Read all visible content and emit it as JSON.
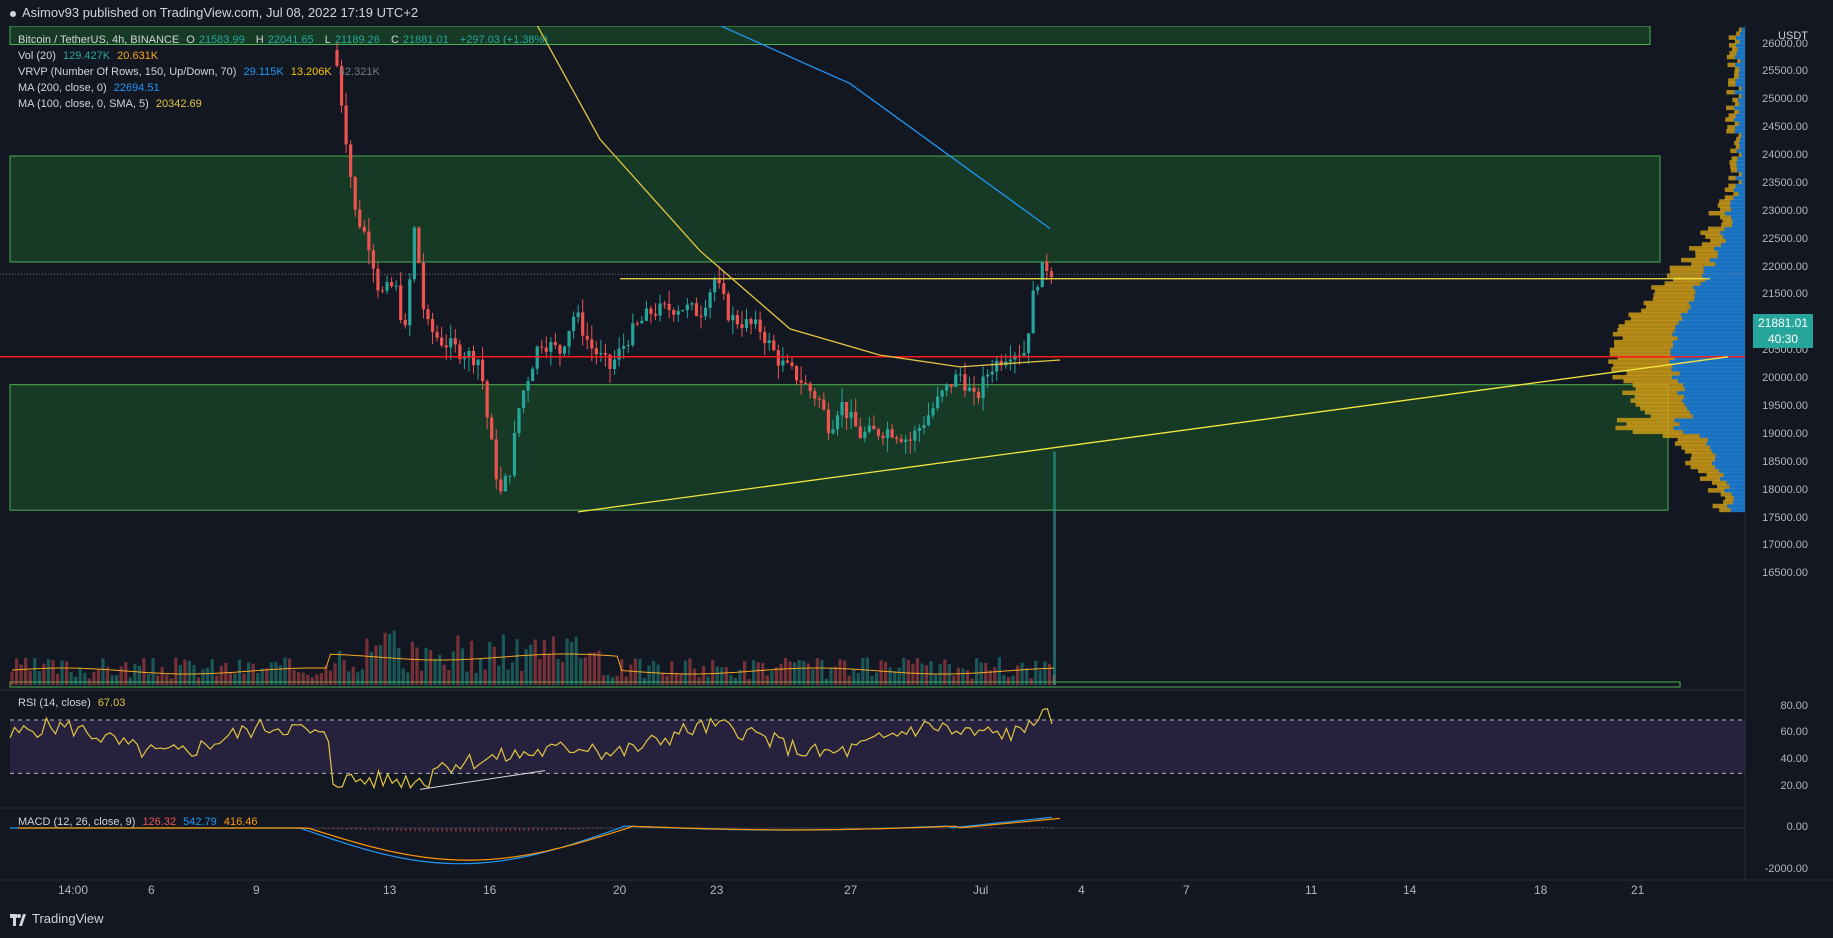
{
  "header": {
    "publisher_text": "Asimov93 published on TradingView.com, Jul 08, 2022 17:19 UTC+2"
  },
  "symbol_line": {
    "title": "Bitcoin / TetherUS, 4h, BINANCE",
    "o_label": "O",
    "o_value": "21583.99",
    "h_label": "H",
    "h_value": "22041.65",
    "l_label": "L",
    "l_value": "21189.26",
    "c_label": "C",
    "c_value": "21881.01",
    "change": "+297.03 (+1.38%)"
  },
  "indicators": {
    "vol_label": "Vol (20)",
    "vol_v1": "129.427K",
    "vol_v2": "20.631K",
    "vrvp_label": "VRVP (Number Of Rows, 150, Up/Down, 70)",
    "vrvp_v1": "29.115K",
    "vrvp_v2": "13.206K",
    "vrvp_v3": "42.321K",
    "ma200_label": "MA (200, close, 0)",
    "ma200_value": "22694.51",
    "ma100_label": "MA (100, close, 0, SMA, 5)",
    "ma100_value": "20342.69"
  },
  "rsi": {
    "label": "RSI (14, close)",
    "value": "67.03"
  },
  "macd": {
    "label": "MACD (12, 26, close, 9)",
    "v1": "126.32",
    "v2": "542.79",
    "v3": "416.46"
  },
  "price_axis": {
    "currency": "USDT",
    "ticks": [
      "26000.00",
      "25500.00",
      "25000.00",
      "24500.00",
      "24000.00",
      "23500.00",
      "23000.00",
      "22500.00",
      "22000.00",
      "21500.00",
      "21000.00",
      "20500.00",
      "20000.00",
      "19500.00",
      "19000.00",
      "18500.00",
      "18000.00",
      "17500.00",
      "17000.00",
      "16500.00"
    ],
    "last_price": "21881.01",
    "countdown": "40:30"
  },
  "rsi_axis": {
    "ticks": [
      "80.00",
      "60.00",
      "40.00",
      "20.00"
    ]
  },
  "macd_axis": {
    "ticks": [
      "0.00",
      "-2000.00"
    ]
  },
  "time_axis": {
    "labels": [
      "14:00",
      "6",
      "9",
      "13",
      "16",
      "20",
      "23",
      "27",
      "Jul",
      "4",
      "7",
      "11",
      "14",
      "18",
      "21"
    ]
  },
  "footer": {
    "brand": "TradingView"
  },
  "colors": {
    "background": "#131722",
    "bull": "#26a69a",
    "bear": "#ef5350",
    "ma200": "#2196f3",
    "ma100": "#e2c541",
    "zone_fill": "#1b5e20",
    "support_line": "#ff1a1a",
    "rsi_band": "#7e57c2"
  },
  "chart_data": {
    "type": "candlestick",
    "title": "Bitcoin / TetherUS, 4h, BINANCE",
    "price_range": [
      16300,
      26300
    ],
    "zones": [
      {
        "from": 22100,
        "to": 24000
      },
      {
        "from": 17650,
        "to": 19900
      },
      {
        "from": 26000,
        "to": 26400
      }
    ],
    "horizontal_lines": [
      {
        "price": 20400,
        "color": "red"
      },
      {
        "price": 21800,
        "color": "yellow"
      }
    ],
    "trendline": {
      "start": {
        "date": "Jun 18",
        "price": 17620
      },
      "end": {
        "date": "Jul 21",
        "price": 20400
      }
    },
    "ma200_path": [
      [
        520,
        27100
      ],
      [
        700,
        26500
      ],
      [
        850,
        25300
      ],
      [
        950,
        24000
      ],
      [
        1050,
        22700
      ]
    ],
    "ma100_path": [
      [
        520,
        26900
      ],
      [
        600,
        24300
      ],
      [
        700,
        22300
      ],
      [
        790,
        20900
      ],
      [
        880,
        20430
      ],
      [
        960,
        20220
      ],
      [
        1060,
        20342
      ]
    ],
    "price_path": [
      [
        335,
        25900
      ],
      [
        345,
        24500
      ],
      [
        355,
        23000
      ],
      [
        370,
        22400
      ],
      [
        380,
        21500
      ],
      [
        395,
        21700
      ],
      [
        405,
        20800
      ],
      [
        415,
        22800
      ],
      [
        425,
        21000
      ],
      [
        440,
        20700
      ],
      [
        460,
        20500
      ],
      [
        480,
        20350
      ],
      [
        488,
        19200
      ],
      [
        500,
        17900
      ],
      [
        510,
        18400
      ],
      [
        520,
        19600
      ],
      [
        540,
        20700
      ],
      [
        560,
        20500
      ],
      [
        575,
        21200
      ],
      [
        590,
        20600
      ],
      [
        610,
        20200
      ],
      [
        630,
        20800
      ],
      [
        650,
        21200
      ],
      [
        680,
        21300
      ],
      [
        700,
        21200
      ],
      [
        715,
        21800
      ],
      [
        730,
        21100
      ],
      [
        760,
        20900
      ],
      [
        780,
        20300
      ],
      [
        800,
        20000
      ],
      [
        820,
        19600
      ],
      [
        830,
        19100
      ],
      [
        840,
        19600
      ],
      [
        860,
        19000
      ],
      [
        890,
        19100
      ],
      [
        910,
        18900
      ],
      [
        930,
        19400
      ],
      [
        945,
        19800
      ],
      [
        960,
        20100
      ],
      [
        975,
        19600
      ],
      [
        990,
        20200
      ],
      [
        1010,
        20500
      ],
      [
        1025,
        20500
      ],
      [
        1035,
        21700
      ],
      [
        1045,
        22050
      ],
      [
        1055,
        21881
      ]
    ],
    "volume_spike_price": 18700,
    "rsi": {
      "range": [
        10,
        85
      ],
      "overbought": 70,
      "oversold": 30,
      "last": 67.03
    },
    "macd": {
      "last_macd": 542.79,
      "last_signal": 416.46,
      "last_hist": 126.32
    }
  }
}
